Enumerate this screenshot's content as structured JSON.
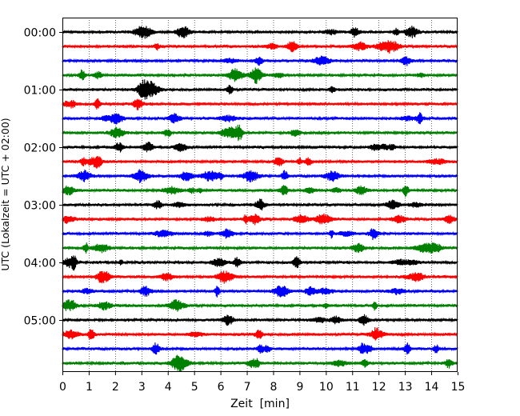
{
  "chart_data": {
    "type": "line",
    "title": "",
    "xlabel": "Zeit  [min]",
    "ylabel": "UTC (Lokalzeit = UTC + 02:00)",
    "xlim": [
      0,
      15
    ],
    "x_ticks": [
      "0",
      "1",
      "2",
      "3",
      "4",
      "5",
      "6",
      "7",
      "8",
      "9",
      "10",
      "11",
      "12",
      "13",
      "14",
      "15"
    ],
    "y_ticks": [
      "00:00",
      "01:00",
      "02:00",
      "03:00",
      "04:00",
      "05:00"
    ],
    "grid": "vertical dotted lines at each minute",
    "trace_interval_min": 15,
    "trace_count": 24,
    "trace_colors": [
      "#000000",
      "#ff0000",
      "#0000ff",
      "#008000"
    ],
    "traces": [
      {
        "start": "00:00",
        "color": "#000000"
      },
      {
        "start": "00:15",
        "color": "#ff0000"
      },
      {
        "start": "00:30",
        "color": "#0000ff"
      },
      {
        "start": "00:45",
        "color": "#008000"
      },
      {
        "start": "01:00",
        "color": "#000000"
      },
      {
        "start": "01:15",
        "color": "#ff0000"
      },
      {
        "start": "01:30",
        "color": "#0000ff"
      },
      {
        "start": "01:45",
        "color": "#008000"
      },
      {
        "start": "02:00",
        "color": "#000000"
      },
      {
        "start": "02:15",
        "color": "#ff0000"
      },
      {
        "start": "02:30",
        "color": "#0000ff"
      },
      {
        "start": "02:45",
        "color": "#008000"
      },
      {
        "start": "03:00",
        "color": "#000000"
      },
      {
        "start": "03:15",
        "color": "#ff0000"
      },
      {
        "start": "03:30",
        "color": "#0000ff"
      },
      {
        "start": "03:45",
        "color": "#008000"
      },
      {
        "start": "04:00",
        "color": "#000000"
      },
      {
        "start": "04:15",
        "color": "#ff0000"
      },
      {
        "start": "04:30",
        "color": "#0000ff"
      },
      {
        "start": "04:45",
        "color": "#008000"
      },
      {
        "start": "05:00",
        "color": "#000000"
      },
      {
        "start": "05:15",
        "color": "#ff0000"
      },
      {
        "start": "05:30",
        "color": "#0000ff"
      },
      {
        "start": "05:45",
        "color": "#008000"
      }
    ]
  }
}
